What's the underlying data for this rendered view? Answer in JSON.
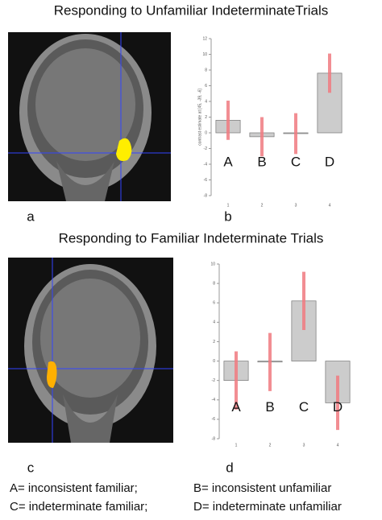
{
  "chart_data": [
    {
      "type": "bar",
      "title": "Responding to Unfamiliar IndeterminateTrials",
      "panel": "b",
      "image_panel": "a",
      "ylabel": "contrast estimate at [45, -39, -6]",
      "categories": [
        1,
        2,
        3,
        4
      ],
      "values": [
        1.6,
        -0.5,
        -0.1,
        7.6
      ],
      "errors": [
        2.5,
        2.5,
        2.6,
        2.5
      ],
      "bar_labels": [
        "A",
        "B",
        "C",
        "D"
      ],
      "color": "#cccccc",
      "error_color": "#f07a80",
      "ylim": [
        -8,
        12
      ],
      "yticks": [
        -8,
        -6,
        -4,
        -2,
        0,
        2,
        4,
        6,
        8,
        10,
        12
      ]
    },
    {
      "type": "bar",
      "title": "Responding to Familiar Indeterminate Trials",
      "panel": "d",
      "image_panel": "c",
      "categories": [
        1,
        2,
        3,
        4
      ],
      "values": [
        -2,
        -0.1,
        6.2,
        -4.3
      ],
      "errors": [
        3,
        3,
        3,
        2.8
      ],
      "bar_labels": [
        "A",
        "B",
        "C",
        "D"
      ],
      "color": "#cccccc",
      "error_color": "#f07a80",
      "ylim": [
        -8,
        10
      ],
      "yticks": [
        -8,
        -6,
        -4,
        -2,
        0,
        2,
        4,
        6,
        8,
        10
      ]
    }
  ],
  "caption": [
    "A= inconsistent familiar;",
    "B= inconsistent unfamiliar",
    "C= indeterminate familiar;",
    "D= indeterminate unfamiliar"
  ]
}
